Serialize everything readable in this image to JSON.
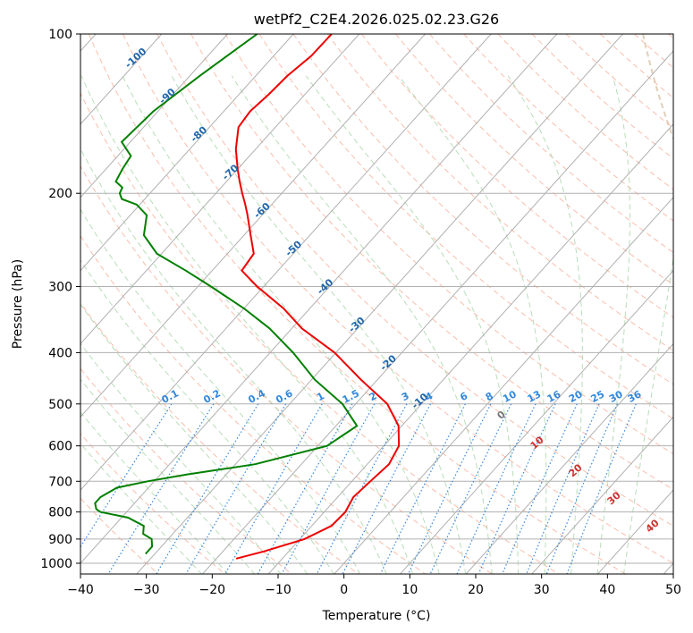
{
  "chart_data": {
    "type": "skew-t",
    "title": "wetPf2_C2E4.2026.025.02.23.G26",
    "xlabel": "Temperature (°C)",
    "ylabel": "Pressure (hPa)",
    "xlim": [
      -40,
      50
    ],
    "ylim": [
      1050,
      100
    ],
    "x_ticks": [
      -40,
      -30,
      -20,
      -10,
      0,
      10,
      20,
      30,
      40,
      50
    ],
    "x_tick_labels": [
      "−40",
      "−30",
      "−20",
      "−10",
      "0",
      "10",
      "20",
      "30",
      "40",
      "50"
    ],
    "y_ticks": [
      100,
      200,
      300,
      400,
      500,
      600,
      700,
      800,
      900,
      1000
    ],
    "y_tick_labels": [
      "100",
      "200",
      "300",
      "400",
      "500",
      "600",
      "700",
      "800",
      "900",
      "1000"
    ],
    "grid": true,
    "colors": {
      "temperature": "#ee0000",
      "dewpoint": "#008000",
      "isotherm": "#b0b0b0",
      "dry_adiabat": "#f7a890",
      "moist_adiabat": "#a8d5a8",
      "mixing_ratio": "#3388dd",
      "isotherm_label": "#2266aa",
      "theta_e_label": "#cc3333",
      "theta_w_label": "#777777",
      "ref_arc": "#d8c4a8"
    },
    "series": [
      {
        "name": "Temperature",
        "pressure": [
          100,
          110,
          120,
          130,
          140,
          150,
          165,
          180,
          190,
          200,
          210,
          220,
          240,
          260,
          280,
          300,
          330,
          360,
          400,
          450,
          500,
          550,
          600,
          650,
          700,
          750,
          800,
          850,
          900,
          950,
          980
        ],
        "values": [
          -74.2,
          -74.3,
          -75.2,
          -75.5,
          -76.0,
          -75.6,
          -73.0,
          -70.0,
          -68.0,
          -66.0,
          -64.0,
          -62.2,
          -59.0,
          -56.0,
          -55.5,
          -51.0,
          -44.0,
          -38.5,
          -30.2,
          -22.5,
          -15.2,
          -10.5,
          -7.7,
          -6.7,
          -7.2,
          -7.6,
          -6.8,
          -7.0,
          -9.3,
          -13.8,
          -17.0
        ]
      },
      {
        "name": "Dewpoint",
        "pressure": [
          100,
          120,
          140,
          160,
          170,
          180,
          190,
          195,
          200,
          205,
          210,
          220,
          240,
          260,
          280,
          300,
          330,
          360,
          400,
          450,
          500,
          550,
          600,
          650,
          680,
          700,
          720,
          750,
          770,
          790,
          800,
          820,
          850,
          880,
          900,
          930,
          960
        ],
        "values": [
          -85.5,
          -88.5,
          -90.7,
          -91.3,
          -88.0,
          -87.5,
          -86.8,
          -85.0,
          -84.6,
          -83.5,
          -80.5,
          -77.5,
          -75.2,
          -70.7,
          -64.0,
          -58.0,
          -50.0,
          -43.4,
          -36.5,
          -29.5,
          -22.0,
          -16.8,
          -18.6,
          -27.0,
          -36.0,
          -41.0,
          -44.8,
          -46.0,
          -46.0,
          -45.0,
          -44.0,
          -39.0,
          -35.5,
          -34.5,
          -32.5,
          -31.4,
          -31.4
        ]
      }
    ],
    "isotherm_labels": [
      "-100",
      "-90",
      "-80",
      "-70",
      "-60",
      "-50",
      "-40",
      "-30",
      "-20",
      "-10"
    ],
    "mixing_ratio_labels": [
      "0.1",
      "0.2",
      "0.4",
      "0.6",
      "1",
      "1.5",
      "2",
      "3",
      "4",
      "6",
      "8",
      "10",
      "13",
      "16",
      "20",
      "25",
      "30",
      "36"
    ],
    "theta_e_labels": [
      "10",
      "20",
      "30",
      "40"
    ],
    "theta_w_label": "0"
  }
}
